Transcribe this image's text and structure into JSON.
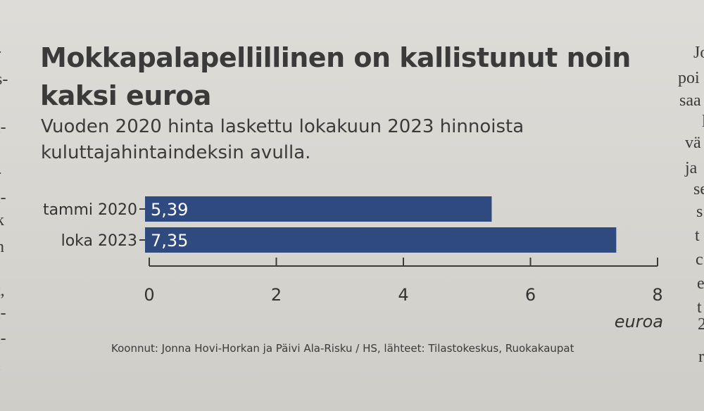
{
  "chart_data": {
    "type": "bar",
    "orientation": "horizontal",
    "title": "Mokkapalapellillinen on kallistunut noin kaksi euroa",
    "subtitle": "Vuoden 2020 hinta laskettu lokakuun 2023 hinnoista kuluttajahintaindeksin avulla.",
    "categories": [
      "tammi 2020",
      "loka 2023"
    ],
    "values": [
      5.39,
      7.35
    ],
    "value_labels": [
      "5,39",
      "7,35"
    ],
    "bar_color": "#2f4a7e",
    "xlabel": "euroa",
    "xlim": [
      0,
      8
    ],
    "xticks": [
      0,
      2,
      4,
      6,
      8
    ],
    "xtick_labels": [
      "0",
      "2",
      "4",
      "6",
      "8"
    ],
    "grid": false,
    "source": "Koonnut: Jonna Hovi-Horkan ja Päivi Ala-Risku / HS, lähteet: Tilastokeskus, Ruokakaupat"
  },
  "adjacent_columns": {
    "left": [
      "-",
      "s-",
      "i-",
      "-",
      "i-",
      "k",
      "n",
      "t,",
      "i-",
      "i-",
      "i"
    ],
    "right": [
      "Jo",
      "poi",
      "saa",
      "l",
      "vä",
      "ja",
      "se",
      "s",
      "t",
      "c",
      "e",
      "t",
      "2",
      "r"
    ]
  }
}
